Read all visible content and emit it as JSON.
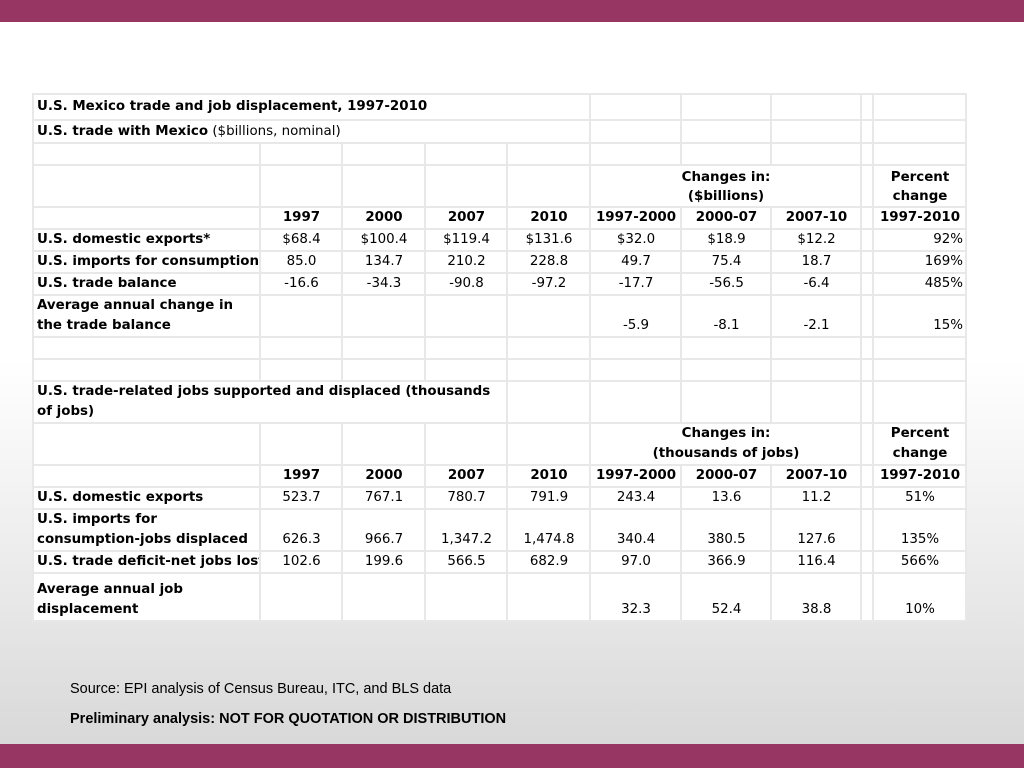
{
  "title": "U.S. Mexico trade and job displacement, 1997-2010",
  "subtitle_bold": "U.S. trade with Mexico",
  "subtitle_rest": " ($billions, nominal)",
  "section1": {
    "changes_header_1": "Changes in:",
    "changes_header_2": "($billions)",
    "pct_header_1": "Percent",
    "pct_header_2": "change",
    "years": [
      "1997",
      "2000",
      "2007",
      "2010",
      "1997-2000",
      "2000-07",
      "2007-10",
      "1997-2010"
    ],
    "rows": [
      {
        "label": "U.S. domestic exports*",
        "values": [
          "$68.4",
          "$100.4",
          "$119.4",
          "$131.6",
          "$32.0",
          "$18.9",
          "$12.2",
          "92%"
        ]
      },
      {
        "label": "U.S. imports for consumption",
        "values": [
          "85.0",
          "134.7",
          "210.2",
          "228.8",
          "49.7",
          "75.4",
          "18.7",
          "169%"
        ]
      },
      {
        "label": "U.S. trade balance",
        "values": [
          "-16.6",
          "-34.3",
          "-90.8",
          "-97.2",
          "-17.7",
          "-56.5",
          "-6.4",
          "485%"
        ]
      },
      {
        "label": "Average annual change in the trade balance",
        "values": [
          "",
          "",
          "",
          "",
          "-5.9",
          "-8.1",
          "-2.1",
          "15%"
        ]
      }
    ]
  },
  "section2": {
    "heading": "U.S. trade-related jobs supported and displaced (thousands of jobs)",
    "changes_header_1": "Changes in:",
    "changes_header_2": "(thousands of jobs)",
    "pct_header_1": "Percent",
    "pct_header_2": "change",
    "years": [
      "1997",
      "2000",
      "2007",
      "2010",
      "1997-2000",
      "2000-07",
      "2007-10",
      "1997-2010"
    ],
    "rows": [
      {
        "label": "U.S. domestic exports",
        "values": [
          "523.7",
          "767.1",
          "780.7",
          "791.9",
          "243.4",
          "13.6",
          "11.2",
          "51%"
        ]
      },
      {
        "label": "U.S. imports for consumption-jobs displaced",
        "values": [
          "626.3",
          "966.7",
          "1,347.2",
          "1,474.8",
          "340.4",
          "380.5",
          "127.6",
          "135%"
        ]
      },
      {
        "label": "U.S. trade deficit-net jobs lost",
        "values": [
          "102.6",
          "199.6",
          "566.5",
          "682.9",
          "97.0",
          "366.9",
          "116.4",
          "566%"
        ]
      },
      {
        "label": "Average annual job displacement",
        "values": [
          "",
          "",
          "",
          "",
          "32.3",
          "52.4",
          "38.8",
          "10%"
        ]
      }
    ]
  },
  "footer": {
    "source": "Source: EPI analysis of Census Bureau, ITC, and BLS data",
    "preliminary": "Preliminary analysis:  NOT FOR QUOTATION OR DISTRIBUTION"
  },
  "colors": {
    "band": "#983663",
    "grid": "#e8e8e8"
  }
}
